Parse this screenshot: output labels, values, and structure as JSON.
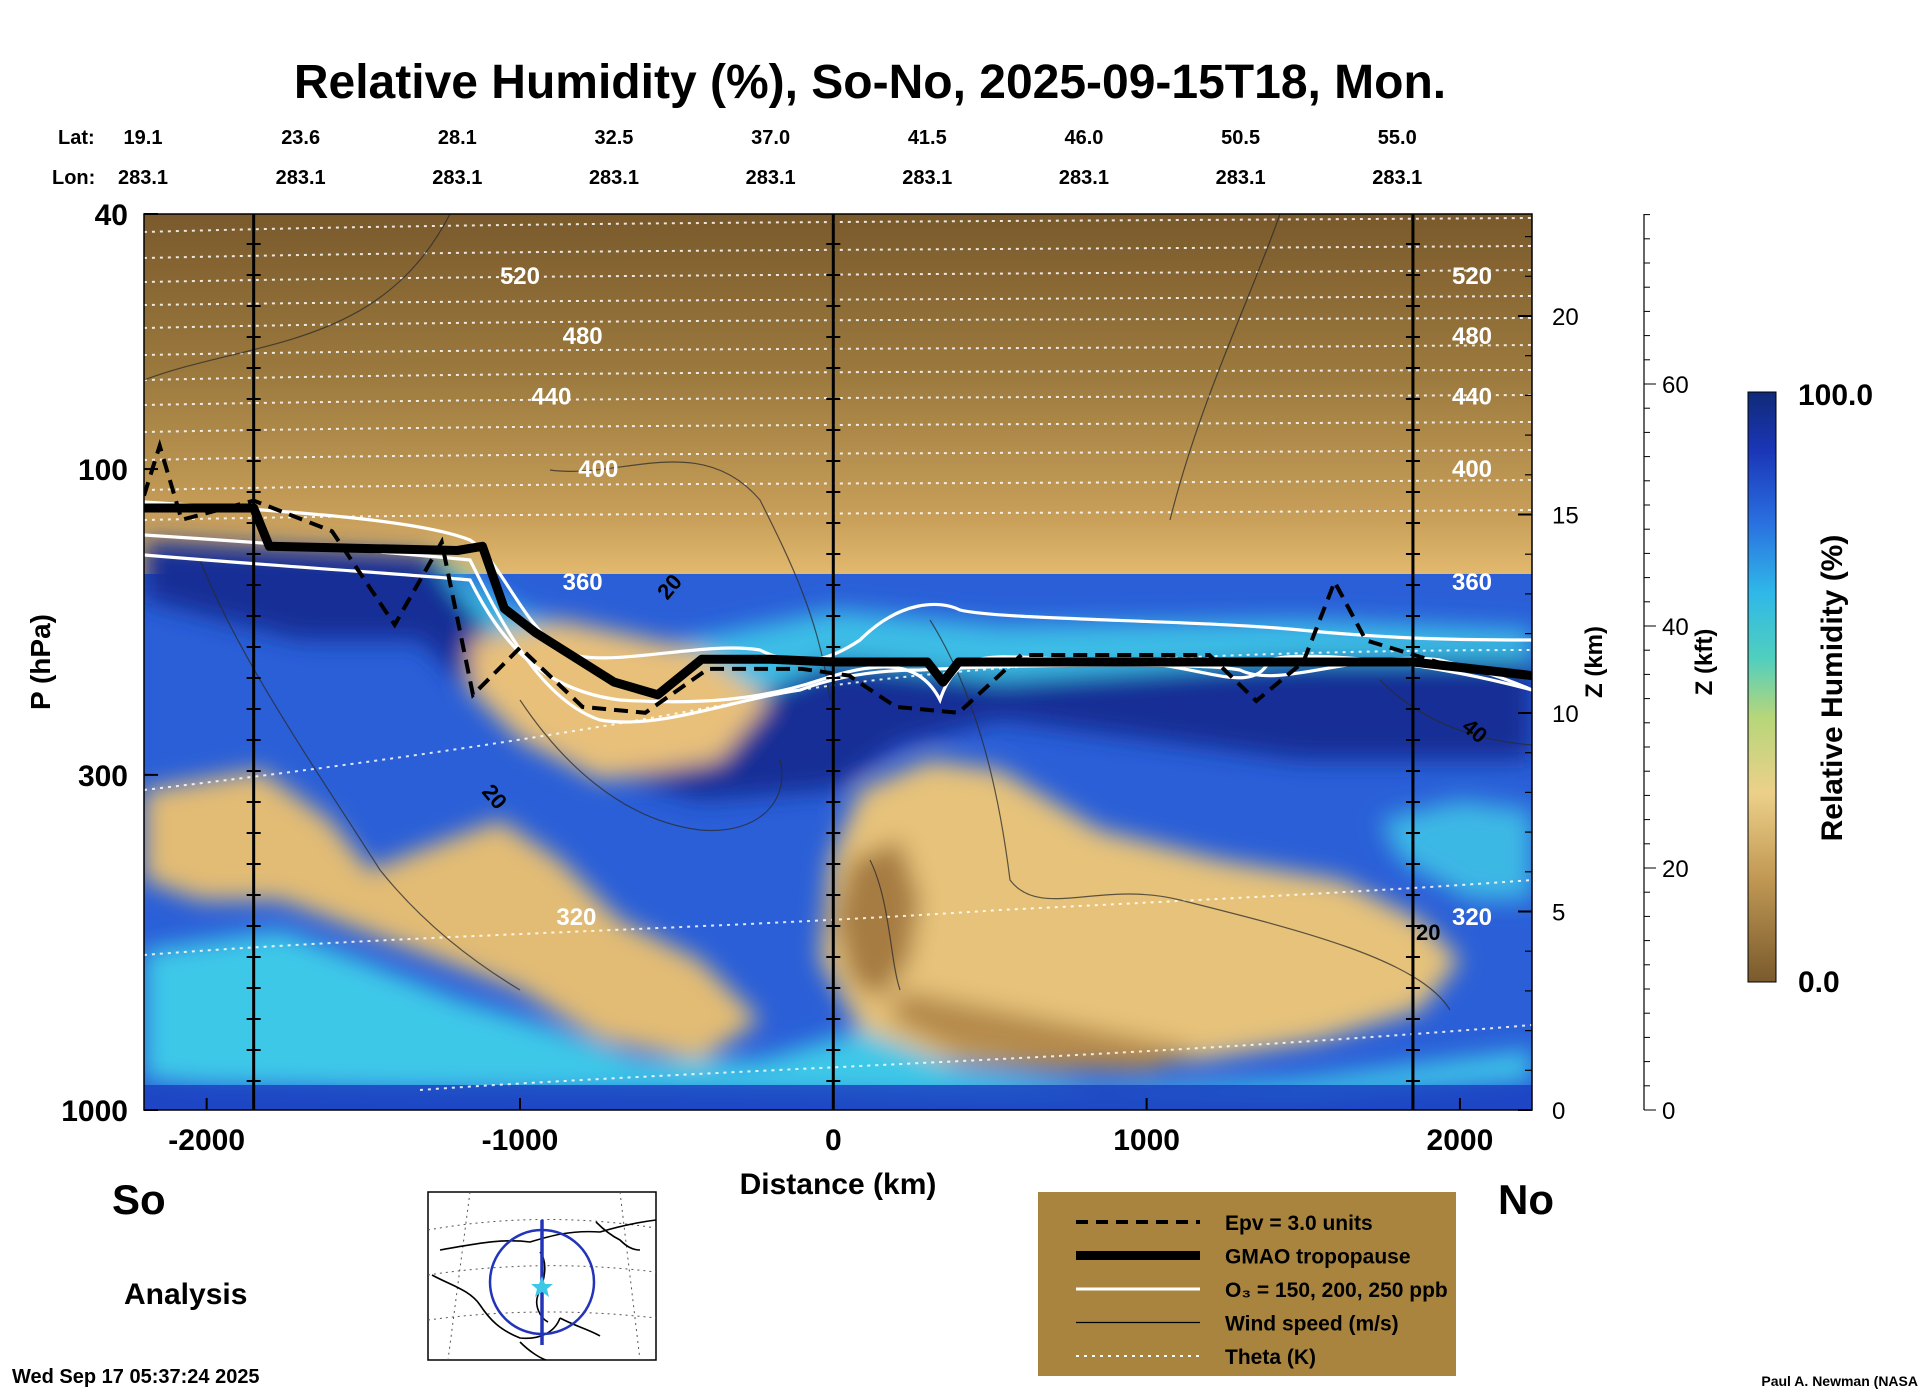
{
  "chart_data": {
    "type": "heatmap",
    "title": "Relative Humidity (%), So-No, 2025-09-15T18, Mon.",
    "variable": "Relative Humidity (%)",
    "xlabel": "Distance (km)",
    "ylabel": "P (hPa)",
    "y2label": "Z (km)",
    "y3label": "Z (kft)",
    "xlim": [
      -2200,
      2230
    ],
    "ylim": [
      1000,
      40
    ],
    "yscale": "log",
    "x_ticks": [
      -2000,
      -1000,
      0,
      1000,
      2000
    ],
    "x_tick_labels": [
      "-2000",
      "-1000",
      "0",
      "1000",
      "2000"
    ],
    "p_ticks": [
      40,
      100,
      300,
      1000
    ],
    "p_tick_labels": [
      "40",
      "100",
      "300",
      "1000"
    ],
    "z_km_ticks": [
      0,
      5,
      10,
      15,
      20
    ],
    "z_km_tick_labels": [
      "0",
      "5",
      "10",
      "15",
      "20"
    ],
    "z_kft_ticks": [
      0,
      20,
      40,
      60
    ],
    "z_kft_tick_labels": [
      "0",
      "20",
      "40",
      "60"
    ],
    "lat_label": "Lat:",
    "lon_label": "Lon:",
    "lats": [
      "19.1",
      "23.6",
      "28.1",
      "32.5",
      "37.0",
      "41.5",
      "46.0",
      "50.5",
      "55.0"
    ],
    "lons": [
      "283.1",
      "283.1",
      "283.1",
      "283.1",
      "283.1",
      "283.1",
      "283.1",
      "283.1",
      "283.1"
    ],
    "lat_positions_km": [
      -2200,
      -1700,
      -1200,
      -700,
      -200,
      300,
      800,
      1300,
      1800
    ],
    "vertical_marker_lines_km": [
      -1850,
      0,
      1850
    ],
    "end_labels": {
      "left": "So",
      "right": "No"
    },
    "colorbar": {
      "label": "Relative Humidity (%)",
      "min": "0.0",
      "max": "100.0"
    },
    "theta_contours_K": [
      {
        "label": "520",
        "p": 50
      },
      {
        "label": "480",
        "p": 62
      },
      {
        "label": "440",
        "p": 77
      },
      {
        "label": "400",
        "p": 100
      },
      {
        "label": "360",
        "p": 150
      },
      {
        "label": "320",
        "p": 500
      }
    ],
    "wind_speed_contour_labels": [
      "20",
      "20",
      "40",
      "20"
    ],
    "tropopause_hPa": [
      [
        -2200,
        115
      ],
      [
        -1850,
        115
      ],
      [
        -1800,
        132
      ],
      [
        -1200,
        134
      ],
      [
        -1120,
        132
      ],
      [
        -1050,
        165
      ],
      [
        -950,
        180
      ],
      [
        -700,
        215
      ],
      [
        -560,
        225
      ],
      [
        -420,
        198
      ],
      [
        -200,
        198
      ],
      [
        0,
        200
      ],
      [
        300,
        200
      ],
      [
        350,
        215
      ],
      [
        400,
        200
      ],
      [
        1000,
        200
      ],
      [
        1850,
        200
      ],
      [
        2230,
        210
      ]
    ],
    "epv_3pvu_hPa": [
      [
        -2200,
        110
      ],
      [
        -2150,
        92
      ],
      [
        -2080,
        120
      ],
      [
        -1850,
        112
      ],
      [
        -1600,
        125
      ],
      [
        -1400,
        175
      ],
      [
        -1250,
        130
      ],
      [
        -1150,
        225
      ],
      [
        -1000,
        190
      ],
      [
        -800,
        235
      ],
      [
        -600,
        240
      ],
      [
        -400,
        205
      ],
      [
        -100,
        205
      ],
      [
        50,
        210
      ],
      [
        200,
        235
      ],
      [
        400,
        240
      ],
      [
        600,
        195
      ],
      [
        1200,
        195
      ],
      [
        1350,
        230
      ],
      [
        1500,
        200
      ],
      [
        1600,
        150
      ],
      [
        1700,
        185
      ],
      [
        2000,
        205
      ],
      [
        2230,
        210
      ]
    ],
    "legend": [
      {
        "style": "dashed-black",
        "label": "Epv = 3.0 units"
      },
      {
        "style": "thick-black",
        "label": "GMAO tropopause"
      },
      {
        "style": "white",
        "label": "O₃ = 150, 200, 250 ppb"
      },
      {
        "style": "thin-black",
        "label": "Wind speed (m/s)"
      },
      {
        "style": "dotted-white",
        "label": "Theta (K)"
      }
    ],
    "analysis_label": "Analysis",
    "timestamp": "Wed Sep 17 05:37:24 2025",
    "credit": "Paul A. Newman (NASA"
  },
  "colors": {
    "rh_dry_dark": "#7a5a2c",
    "rh_dry": "#b08a4a",
    "rh_mid": "#e6c07a",
    "rh_cyan": "#3ec8e8",
    "rh_wet": "#1b44c8",
    "rh_saturated": "#102a84",
    "legend_background": "#a9843f"
  }
}
